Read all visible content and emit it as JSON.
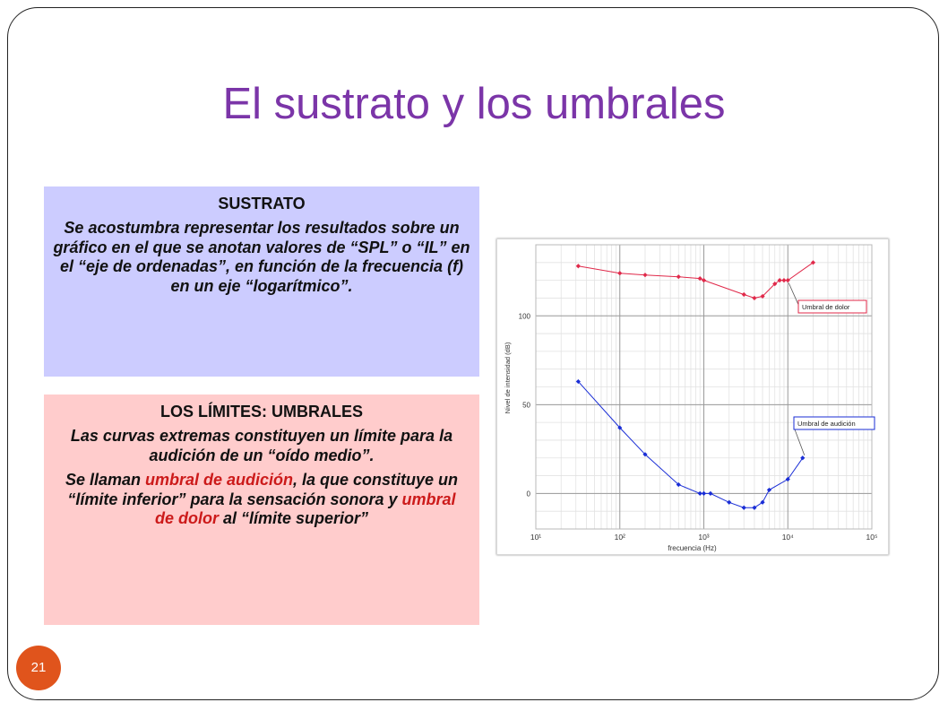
{
  "slide": {
    "title": "El sustrato y los umbrales",
    "page_number": "21"
  },
  "box_sustrato": {
    "heading": "SUSTRATO",
    "body": "Se acostumbra representar los resultados sobre un gráfico en el que se anotan valores de “SPL” o “IL” en el “eje de ordenadas”, en función de la frecuencia (f) en un eje “logarítmico”."
  },
  "box_limites": {
    "heading": "LOS LÍMITES: UMBRALES",
    "paragraph1": "Las curvas extremas constituyen un límite para la audición de un “oído medio”.",
    "p2_part1": "Se llaman ",
    "p2_highlight1": "umbral de audición",
    "p2_part2": ", la que constituye un “límite inferior” para la sensación sonora y ",
    "p2_highlight2": "umbral de dolor",
    "p2_part3": " al “límite superior”",
    "highlight_color": "#cc1a1a"
  },
  "chart_data": {
    "type": "line",
    "xlabel": "frecuencia (Hz)",
    "ylabel": "Nivel de intensidad (dB)",
    "xscale": "log",
    "xlim": [
      10,
      100000
    ],
    "ylim": [
      -20,
      140
    ],
    "grid": true,
    "x_tick_labels": [
      "10¹",
      "10²",
      "10³",
      "10⁴",
      "10⁵"
    ],
    "y_ticks": [
      0,
      50,
      100
    ],
    "y_tick_labels": [
      "0",
      "50",
      "100"
    ],
    "series": [
      {
        "name": "Umbral de dolor",
        "color": "#e0294a",
        "x": [
          32,
          100,
          200,
          500,
          900,
          1000,
          3000,
          4000,
          5000,
          7000,
          8000,
          9000,
          10000,
          20000
        ],
        "y": [
          128,
          124,
          123,
          122,
          121,
          120,
          112,
          110,
          111,
          118,
          120,
          120,
          120,
          130
        ]
      },
      {
        "name": "Umbral de audición",
        "color": "#1a2ed6",
        "x": [
          32,
          100,
          200,
          500,
          900,
          1000,
          1200,
          2000,
          3000,
          4000,
          5000,
          6000,
          10000,
          15000
        ],
        "y": [
          63,
          37,
          22,
          5,
          0,
          0,
          0,
          -5,
          -8,
          -8,
          -5,
          2,
          8,
          20
        ]
      }
    ]
  }
}
